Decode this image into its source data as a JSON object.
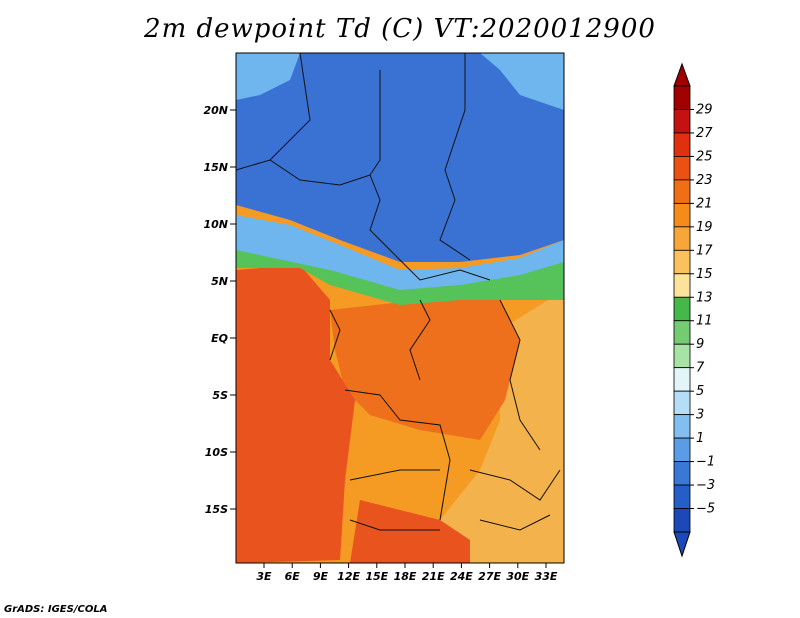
{
  "title": "2m dewpoint Td (C) VT:2020012900",
  "credit": "GrADS: IGES/COLA",
  "map": {
    "lat_labels": [
      "20N",
      "15N",
      "10N",
      "5N",
      "EQ",
      "5S",
      "10S",
      "15S"
    ],
    "lon_labels": [
      "3E",
      "6E",
      "9E",
      "12E",
      "15E",
      "18E",
      "21E",
      "24E",
      "27E",
      "30E",
      "33E"
    ],
    "region_fills": {
      "sahara": "#3a72d4",
      "sahel_transition": "#6fb6ee",
      "green_band": "#56c25a",
      "atlantic": "#e8531e",
      "congo": "#ee6f1c",
      "southern": "#f59a22",
      "east": "#f3b24c"
    }
  },
  "legend": {
    "levels": [
      "29",
      "27",
      "25",
      "23",
      "21",
      "19",
      "17",
      "15",
      "13",
      "11",
      "9",
      "7",
      "5",
      "3",
      "1",
      "−1",
      "−3",
      "−5"
    ],
    "colors": [
      "#a00000",
      "#c41212",
      "#e0300e",
      "#ec5012",
      "#f06f14",
      "#f58c1a",
      "#f7a63a",
      "#f9c25c",
      "#fbe39c",
      "#46b84b",
      "#74cc72",
      "#a7e3a5",
      "#e2f6fa",
      "#b4ddf6",
      "#82bef0",
      "#5a9ce6",
      "#3a78d6",
      "#245ec8",
      "#1c48b8"
    ]
  }
}
